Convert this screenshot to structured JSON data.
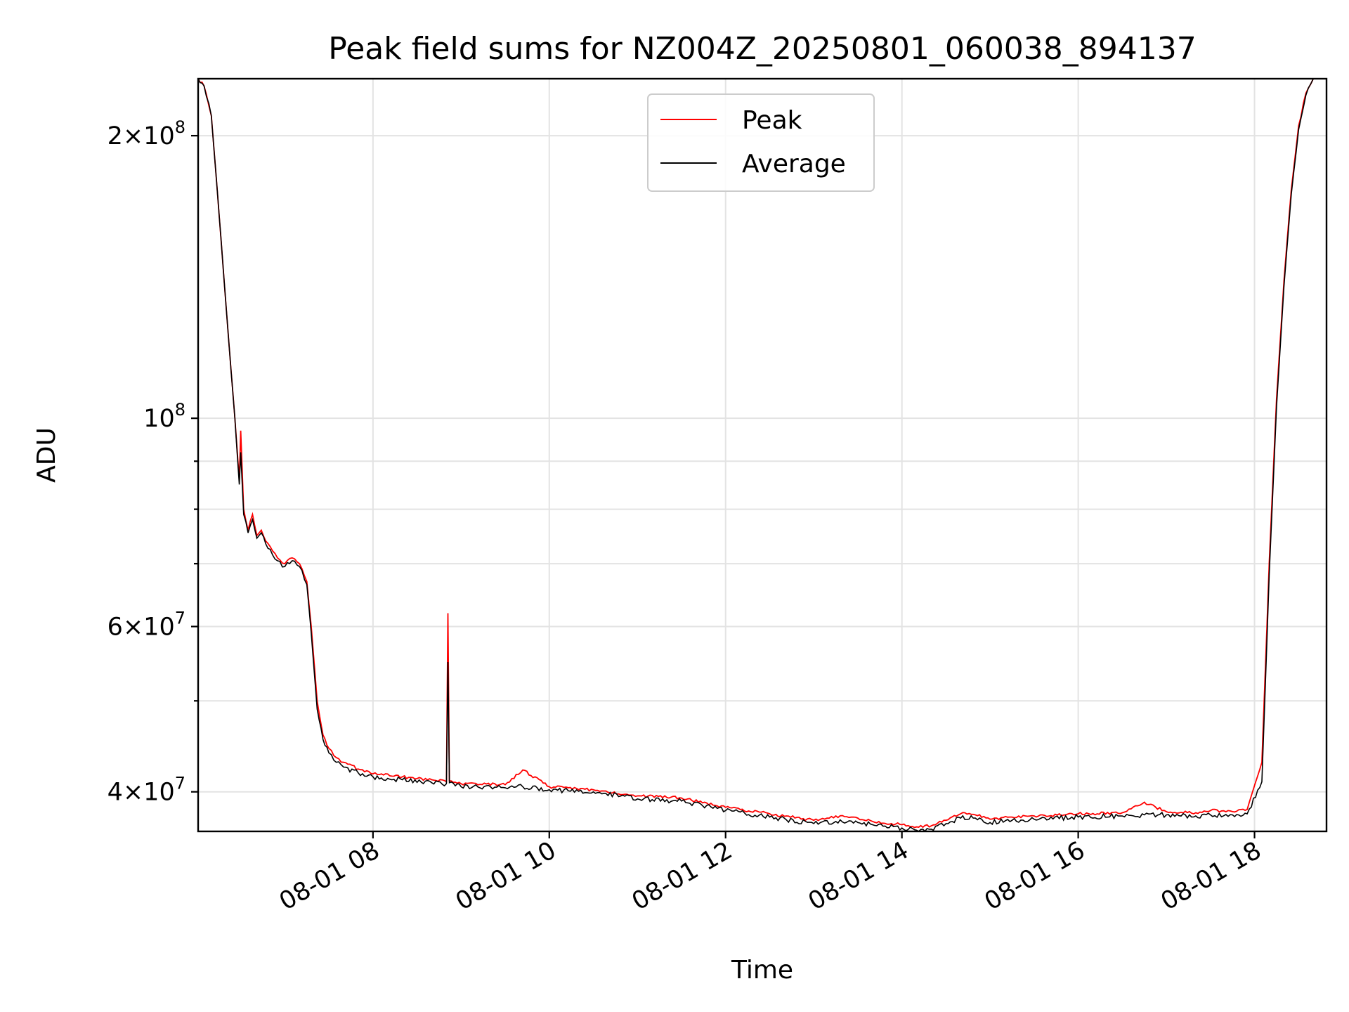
{
  "chart_data": {
    "type": "line",
    "title": "Peak field sums for NZ004Z_20250801_060038_894137",
    "xlabel": "Time",
    "ylabel": "ADU",
    "yscale": "log",
    "xlim": [
      "08-01 06:01",
      "08-01 18:49"
    ],
    "ylim": [
      36300000,
      230000000
    ],
    "grid": true,
    "legend_position": "upper center",
    "x_ticks": [
      "08-01 08",
      "08-01 10",
      "08-01 12",
      "08-01 14",
      "08-01 16",
      "08-01 18"
    ],
    "y_ticks": [
      {
        "value": 40000000,
        "mantissa": "4×10",
        "exp": "7"
      },
      {
        "value": 60000000,
        "mantissa": "6×10",
        "exp": "7"
      },
      {
        "value": 100000000,
        "mantissa": "10",
        "exp": "8"
      },
      {
        "value": 200000000,
        "mantissa": "2×10",
        "exp": "8"
      }
    ],
    "series": [
      {
        "name": "Peak",
        "color": "#ff0000",
        "x": [
          "08-01 06:01",
          "08-01 06:05",
          "08-01 06:10",
          "08-01 06:14",
          "08-01 06:18",
          "08-01 06:22",
          "08-01 06:26",
          "08-01 06:29",
          "08-01 06:30",
          "08-01 06:32",
          "08-01 06:35",
          "08-01 06:38",
          "08-01 06:41",
          "08-01 06:44",
          "08-01 06:47",
          "08-01 06:50",
          "08-01 06:55",
          "08-01 07:00",
          "08-01 07:05",
          "08-01 07:10",
          "08-01 07:15",
          "08-01 07:18",
          "08-01 07:22",
          "08-01 07:26",
          "08-01 07:30",
          "08-01 07:35",
          "08-01 07:40",
          "08-01 07:50",
          "08-01 08:00",
          "08-01 08:20",
          "08-01 08:40",
          "08-01 08:50",
          "08-01 08:51",
          "08-01 08:52",
          "08-01 09:00",
          "08-01 09:30",
          "08-01 09:42",
          "08-01 10:00",
          "08-01 10:30",
          "08-01 11:00",
          "08-01 11:30",
          "08-01 12:00",
          "08-01 12:30",
          "08-01 13:00",
          "08-01 13:15",
          "08-01 13:30",
          "08-01 13:40",
          "08-01 14:00",
          "08-01 14:10",
          "08-01 14:20",
          "08-01 14:30",
          "08-01 14:40",
          "08-01 14:50",
          "08-01 15:00",
          "08-01 15:15",
          "08-01 15:30",
          "08-01 16:00",
          "08-01 16:30",
          "08-01 16:45",
          "08-01 17:00",
          "08-01 17:20",
          "08-01 17:30",
          "08-01 17:45",
          "08-01 17:55",
          "08-01 18:05",
          "08-01 18:10",
          "08-01 18:15",
          "08-01 18:20",
          "08-01 18:25",
          "08-01 18:30",
          "08-01 18:35",
          "08-01 18:40",
          "08-01 18:45",
          "08-01 18:49"
        ],
        "y": [
          230000000,
          226000000,
          210000000,
          175000000,
          145000000,
          120000000,
          100000000,
          86000000,
          97000000,
          80000000,
          76000000,
          79000000,
          75000000,
          76000000,
          74000000,
          73000000,
          71000000,
          70000000,
          71000000,
          70000000,
          67000000,
          60000000,
          50000000,
          46000000,
          44500000,
          43500000,
          43000000,
          42300000,
          41800000,
          41500000,
          41200000,
          41000000,
          62000000,
          41100000,
          40800000,
          40700000,
          42200000,
          40500000,
          40200000,
          39600000,
          39400000,
          38500000,
          37900000,
          37300000,
          37700000,
          37500000,
          37200000,
          36900000,
          36700000,
          36800000,
          37300000,
          37900000,
          37800000,
          37400000,
          37600000,
          37700000,
          37900000,
          38000000,
          39000000,
          38100000,
          38000000,
          38200000,
          38100000,
          38300000,
          43000000,
          70000000,
          105000000,
          140000000,
          175000000,
          205000000,
          222000000,
          230000000,
          231000000,
          231000000
        ]
      },
      {
        "name": "Average",
        "color": "#000000",
        "x": [
          "08-01 06:01",
          "08-01 06:05",
          "08-01 06:10",
          "08-01 06:14",
          "08-01 06:18",
          "08-01 06:22",
          "08-01 06:26",
          "08-01 06:29",
          "08-01 06:30",
          "08-01 06:32",
          "08-01 06:35",
          "08-01 06:38",
          "08-01 06:41",
          "08-01 06:44",
          "08-01 06:47",
          "08-01 06:50",
          "08-01 06:55",
          "08-01 07:00",
          "08-01 07:05",
          "08-01 07:10",
          "08-01 07:15",
          "08-01 07:18",
          "08-01 07:22",
          "08-01 07:26",
          "08-01 07:30",
          "08-01 07:35",
          "08-01 07:40",
          "08-01 07:50",
          "08-01 08:00",
          "08-01 08:20",
          "08-01 08:40",
          "08-01 08:50",
          "08-01 08:51",
          "08-01 08:52",
          "08-01 09:00",
          "08-01 09:30",
          "08-01 09:42",
          "08-01 10:00",
          "08-01 10:30",
          "08-01 11:00",
          "08-01 11:30",
          "08-01 12:00",
          "08-01 12:30",
          "08-01 13:00",
          "08-01 13:15",
          "08-01 13:30",
          "08-01 13:40",
          "08-01 14:00",
          "08-01 14:10",
          "08-01 14:20",
          "08-01 14:30",
          "08-01 14:40",
          "08-01 14:50",
          "08-01 15:00",
          "08-01 15:15",
          "08-01 15:30",
          "08-01 16:00",
          "08-01 16:30",
          "08-01 16:45",
          "08-01 17:00",
          "08-01 17:20",
          "08-01 17:30",
          "08-01 17:45",
          "08-01 17:55",
          "08-01 18:05",
          "08-01 18:10",
          "08-01 18:15",
          "08-01 18:20",
          "08-01 18:25",
          "08-01 18:30",
          "08-01 18:35",
          "08-01 18:40",
          "08-01 18:45",
          "08-01 18:49"
        ],
        "y": [
          230000000,
          226000000,
          210000000,
          175000000,
          145000000,
          120000000,
          100000000,
          85000000,
          92000000,
          79000000,
          75500000,
          78000000,
          74500000,
          75500000,
          73500000,
          72500000,
          70500000,
          69500000,
          70500000,
          69500000,
          66500000,
          59000000,
          49000000,
          45500000,
          44000000,
          43000000,
          42500000,
          41900000,
          41500000,
          41200000,
          40900000,
          40800000,
          55000000,
          40900000,
          40500000,
          40400000,
          40500000,
          40200000,
          40000000,
          39300000,
          39100000,
          38200000,
          37600000,
          37000000,
          37200000,
          37100000,
          36900000,
          36600000,
          36400000,
          36500000,
          37000000,
          37500000,
          37500000,
          37100000,
          37300000,
          37400000,
          37600000,
          37700000,
          37800000,
          37800000,
          37700000,
          37800000,
          37800000,
          37900000,
          41000000,
          68000000,
          103000000,
          138000000,
          173000000,
          203000000,
          221000000,
          230000000,
          231000000,
          231000000
        ]
      }
    ]
  }
}
